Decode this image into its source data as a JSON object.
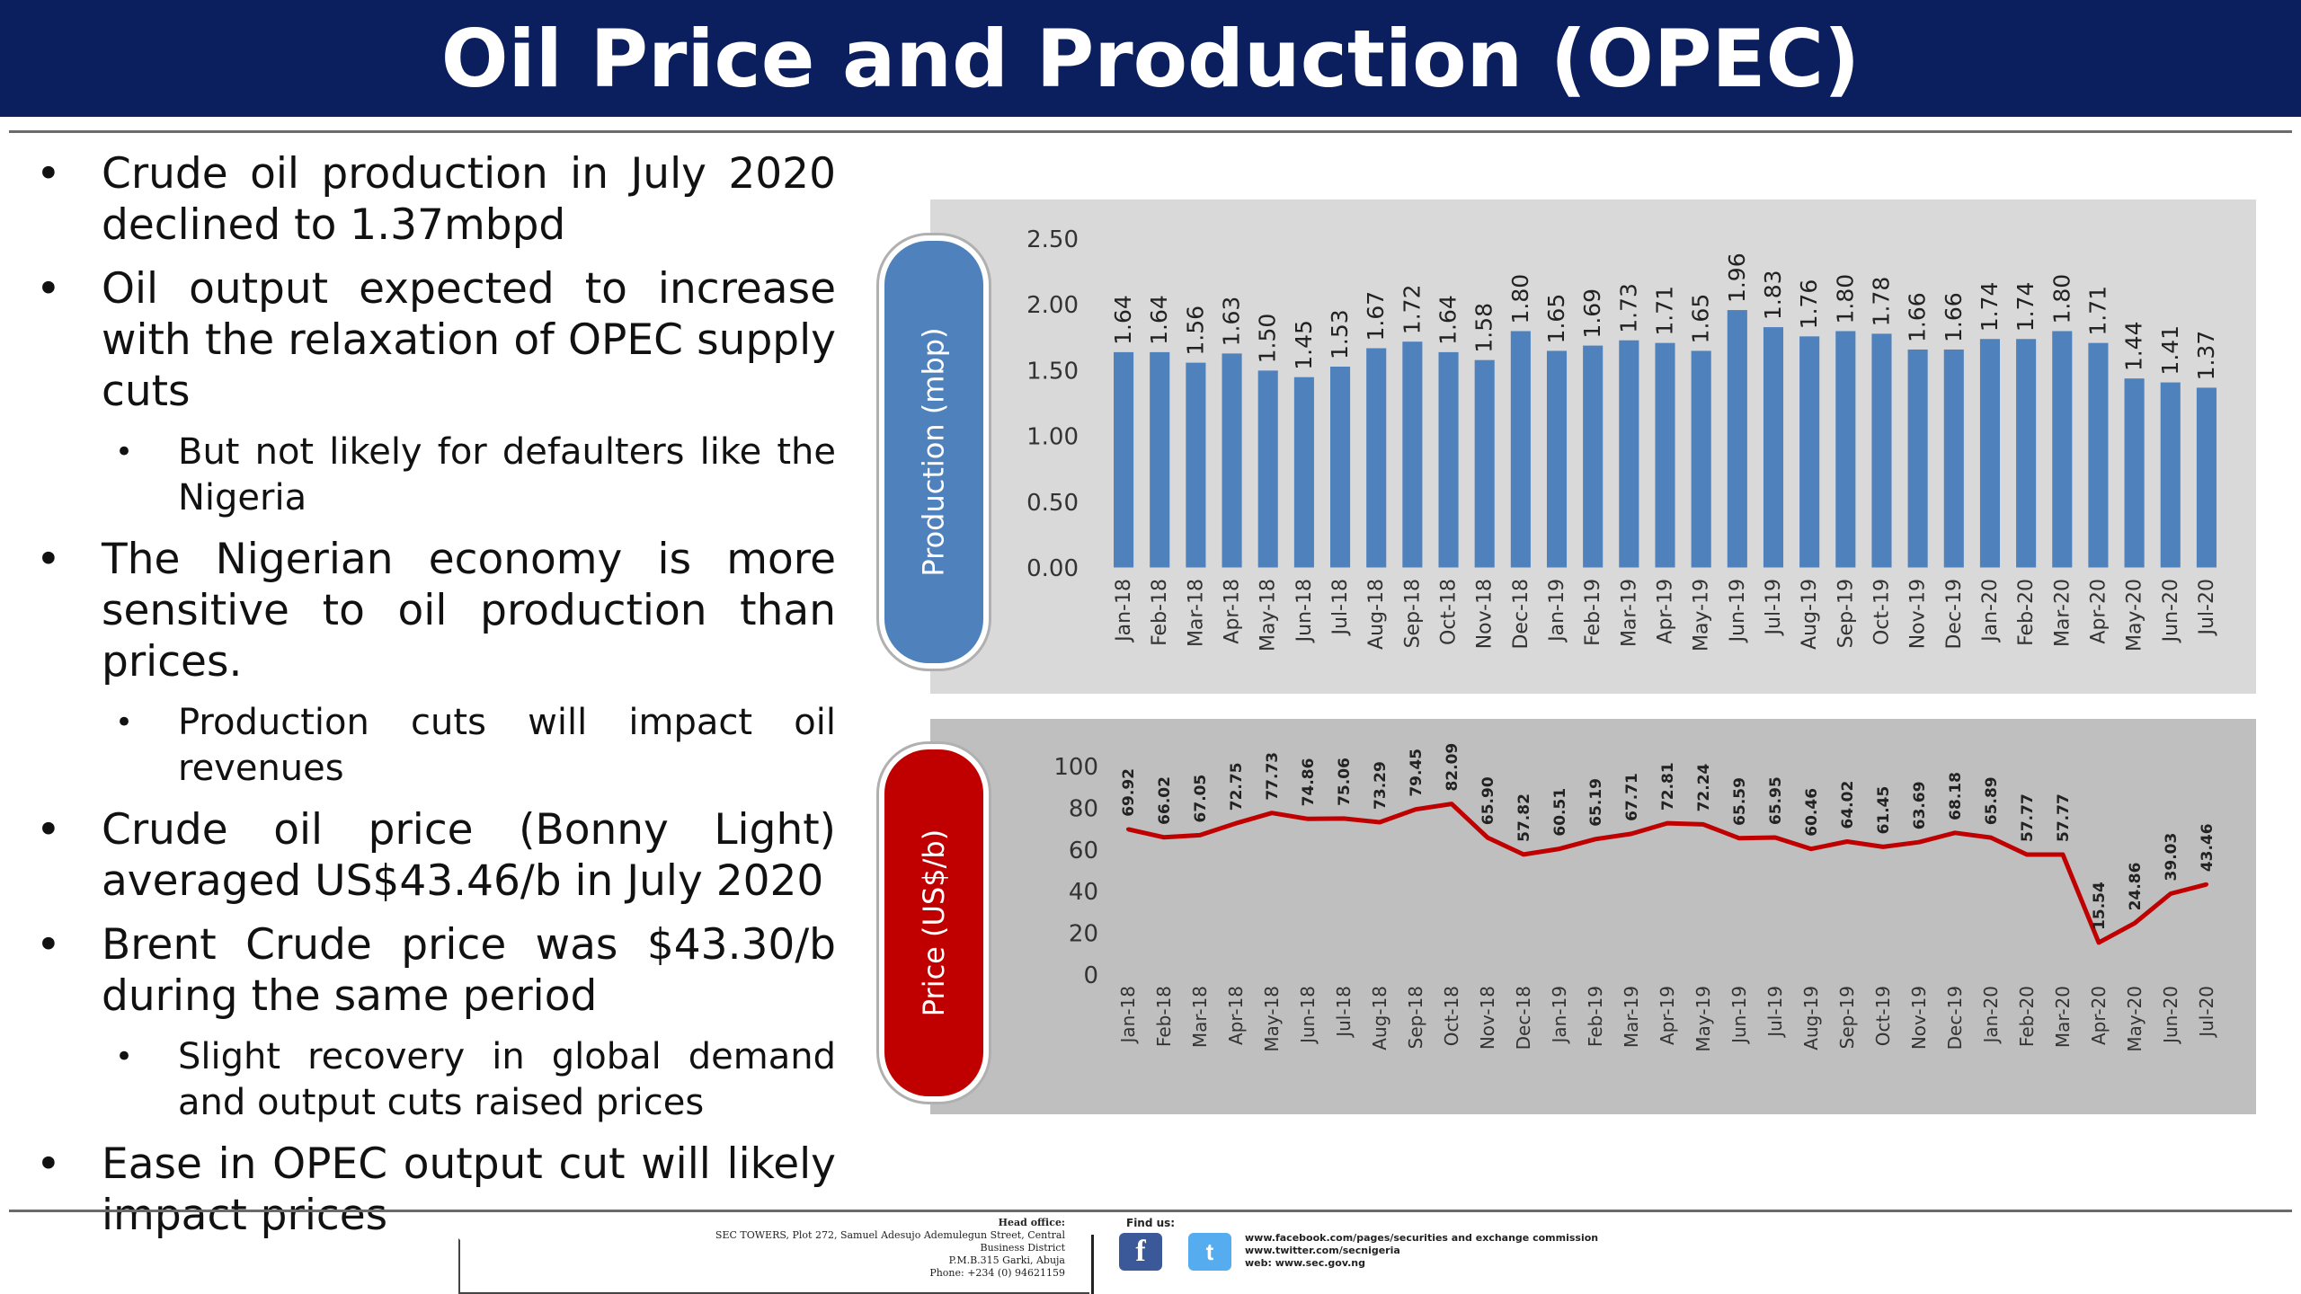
{
  "title": "Oil Price and Production (OPEC)",
  "bullets": [
    {
      "level": 1,
      "text": "Crude oil production in July 2020 declined to 1.37mbpd"
    },
    {
      "level": 1,
      "text": "Oil output expected to increase with the relaxation of OPEC supply cuts"
    },
    {
      "level": 2,
      "text": "But not likely for defaulters like the Nigeria"
    },
    {
      "level": 1,
      "text": "The Nigerian economy is more sensitive to oil production than prices."
    },
    {
      "level": 2,
      "text": "Production cuts will impact oil revenues"
    },
    {
      "level": 1,
      "text": "Crude oil price (Bonny Light) averaged US$43.46/b in July 2020"
    },
    {
      "level": 1,
      "text": "Brent Crude price was $43.30/b during the same period"
    },
    {
      "level": 2,
      "text": "Slight recovery in global demand and output cuts raised prices"
    },
    {
      "level": 1,
      "text": "Ease in OPEC output cut will likely impact prices"
    }
  ],
  "bullet_glyph": "•",
  "chart_data": [
    {
      "type": "bar",
      "ylabel": "Production (mbp)",
      "ylim": [
        0,
        2.5
      ],
      "yticks": [
        "0.00",
        "0.50",
        "1.00",
        "1.50",
        "2.00",
        "2.50"
      ],
      "categories": [
        "Jan-18",
        "Feb-18",
        "Mar-18",
        "Apr-18",
        "May-18",
        "Jun-18",
        "Jul-18",
        "Aug-18",
        "Sep-18",
        "Oct-18",
        "Nov-18",
        "Dec-18",
        "Jan-19",
        "Feb-19",
        "Mar-19",
        "Apr-19",
        "May-19",
        "Jun-19",
        "Jul-19",
        "Aug-19",
        "Sep-19",
        "Oct-19",
        "Nov-19",
        "Dec-19",
        "Jan-20",
        "Feb-20",
        "Mar-20",
        "Apr-20",
        "May-20",
        "Jun-20",
        "Jul-20"
      ],
      "values": [
        1.64,
        1.64,
        1.56,
        1.63,
        1.5,
        1.45,
        1.53,
        1.67,
        1.72,
        1.64,
        1.58,
        1.8,
        1.65,
        1.69,
        1.73,
        1.71,
        1.65,
        1.96,
        1.83,
        1.76,
        1.8,
        1.78,
        1.66,
        1.66,
        1.74,
        1.74,
        1.8,
        1.71,
        1.44,
        1.41,
        1.37
      ],
      "data_labels": [
        "1.64",
        "1.64",
        "1.56",
        "1.63",
        "1.50",
        "1.45",
        "1.53",
        "1.67",
        "1.72",
        "1.64",
        "1.58",
        "1.80",
        "1.65",
        "1.69",
        "1.73",
        "1.71",
        "1.65",
        "1.96",
        "1.83",
        "1.76",
        "1.80",
        "1.78",
        "1.66",
        "1.66",
        "1.74",
        "1.74",
        "1.80",
        "1.71",
        "1.44",
        "1.41",
        "1.37"
      ],
      "color": "#4f81bd",
      "grid": false
    },
    {
      "type": "line",
      "ylabel": "Price (US$/b)",
      "ylim": [
        0,
        100
      ],
      "yticks": [
        "0",
        "20",
        "40",
        "60",
        "80",
        "100"
      ],
      "categories": [
        "Jan-18",
        "Feb-18",
        "Mar-18",
        "Apr-18",
        "May-18",
        "Jun-18",
        "Jul-18",
        "Aug-18",
        "Sep-18",
        "Oct-18",
        "Nov-18",
        "Dec-18",
        "Jan-19",
        "Feb-19",
        "Mar-19",
        "Apr-19",
        "May-19",
        "Jun-19",
        "Jul-19",
        "Aug-19",
        "Sep-19",
        "Oct-19",
        "Nov-19",
        "Dec-19",
        "Jan-20",
        "Feb-20",
        "Mar-20",
        "Apr-20",
        "May-20",
        "Jun-20",
        "Jul-20"
      ],
      "values": [
        69.92,
        66.02,
        67.05,
        72.75,
        77.73,
        74.86,
        75.06,
        73.29,
        79.45,
        82.09,
        65.9,
        57.82,
        60.51,
        65.19,
        67.71,
        72.81,
        72.24,
        65.59,
        65.95,
        60.46,
        64.02,
        61.45,
        63.69,
        68.18,
        65.89,
        57.77,
        57.77,
        15.54,
        24.86,
        39.03,
        43.46
      ],
      "data_labels": [
        "69.92",
        "66.02",
        "67.05",
        "72.75",
        "77.73",
        "74.86",
        "75.06",
        "73.29",
        "79.45",
        "82.09",
        "65.90",
        "57.82",
        "60.51",
        "65.19",
        "67.71",
        "72.81",
        "72.24",
        "65.59",
        "65.95",
        "60.46",
        "64.02",
        "61.45",
        "63.69",
        "68.18",
        "65.89",
        "57.77",
        "57.77",
        "15.54",
        "24.86",
        "39.03",
        "43.46"
      ],
      "color": "#c00000",
      "grid": false
    }
  ],
  "footer": {
    "head_office_label": "Head office:",
    "address_lines": [
      "SEC TOWERS, Plot 272, Samuel Adesujo Ademulegun Street, Central",
      "Business District",
      "P.M.B.315 Garki, Abuja",
      "Phone: +234 (0) 94621159"
    ],
    "find_us_label": "Find us:",
    "links": [
      "www.facebook.com/pages/securities and exchange commission",
      "www.twitter.com/secnigeria",
      "web: www.sec.gov.ng"
    ],
    "facebook_icon_glyph": "f",
    "twitter_icon_glyph": "t"
  }
}
